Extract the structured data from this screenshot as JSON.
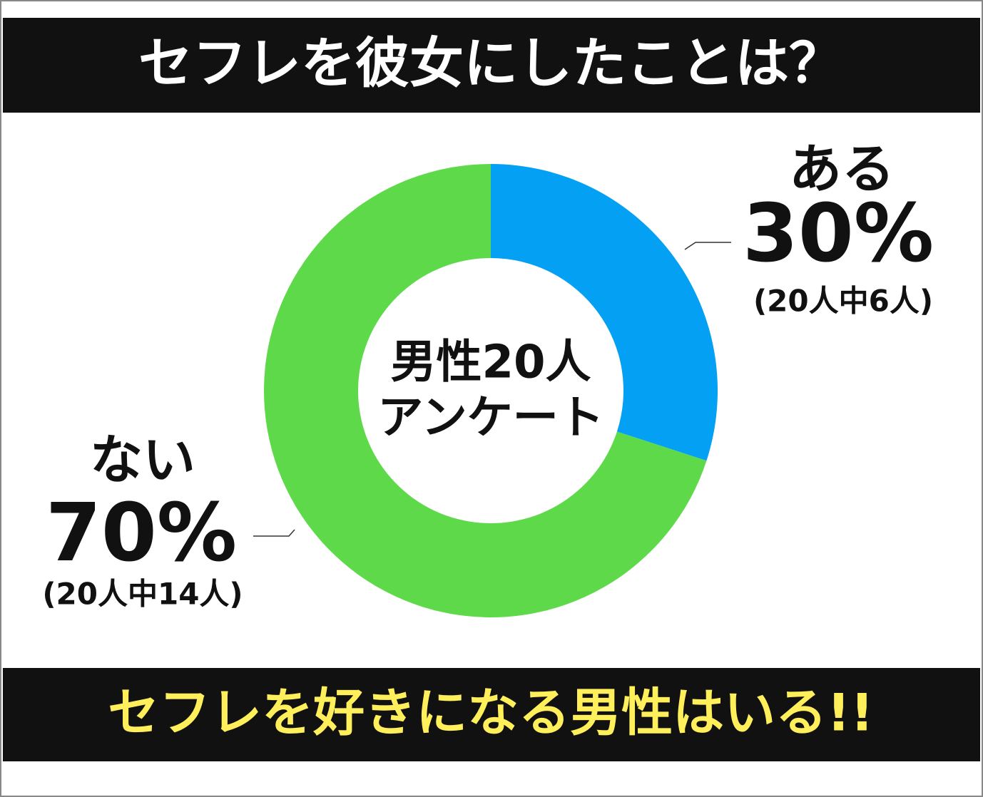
{
  "chart_data": {
    "type": "pie",
    "title": "セフレを彼女にしたことは？",
    "footer": "セフレを好きになる男性はいる!!",
    "center_label": [
      "男性20人",
      "アンケート"
    ],
    "categories": [
      "ある",
      "ない"
    ],
    "values": [
      30,
      70
    ],
    "value_labels": [
      "30%",
      "70%"
    ],
    "annotations": [
      "(20人中6人)",
      "(20人中14人)"
    ],
    "colors": [
      "#03a0f3",
      "#5ed94a"
    ]
  }
}
